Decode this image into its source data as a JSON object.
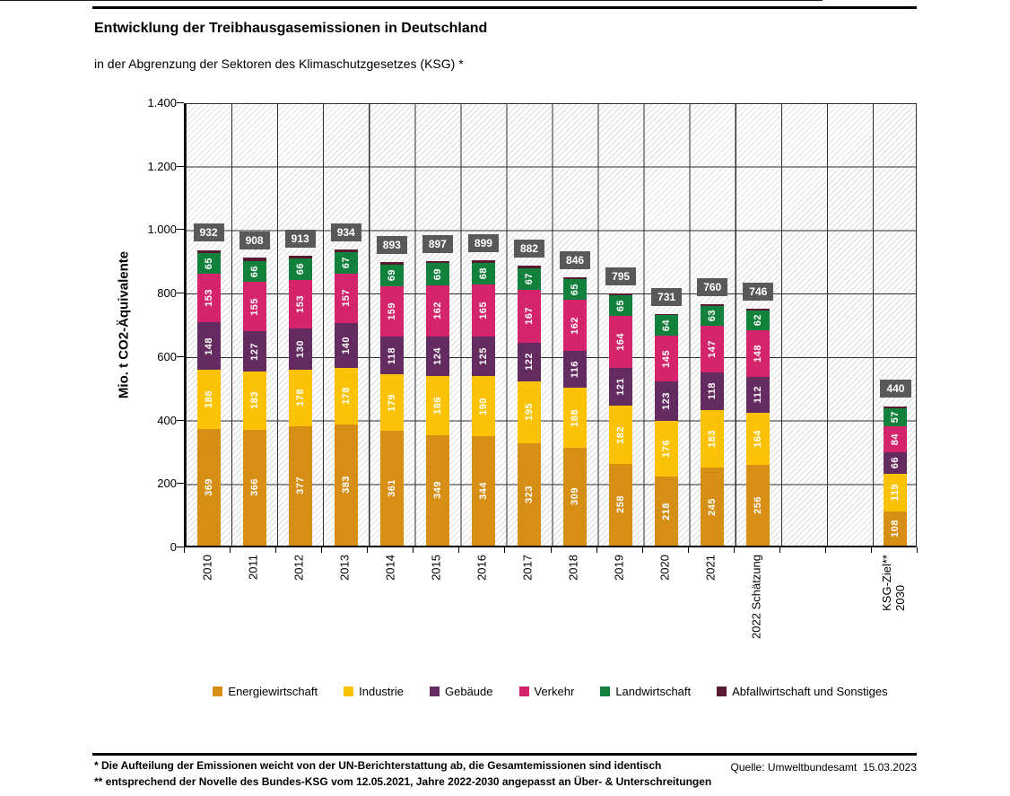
{
  "header": {
    "title": "Entwicklung der Treibhausgasemissionen in Deutschland",
    "subtitle": "in der Abgrenzung der Sektoren des Klimaschutzgesetzes (KSG) *"
  },
  "y_axis": {
    "title": "Mio. t CO2-Äquivalente",
    "ticks": [
      "0",
      "200",
      "400",
      "600",
      "800",
      "1.000",
      "1.200",
      "1.400"
    ]
  },
  "chart_data": {
    "type": "bar",
    "stacked": true,
    "title": "Entwicklung der Treibhausgasemissionen in Deutschland",
    "subtitle": "in der Abgrenzung der Sektoren des Klimaschutzgesetzes (KSG) *",
    "xlabel": "",
    "ylabel": "Mio. t CO2-Äquivalente",
    "ylim": [
      0,
      1400
    ],
    "grid": true,
    "background_hatch": "diagonal",
    "legend_position": "bottom",
    "n_columns": 16,
    "total_badge_color": "#595959",
    "categories": [
      {
        "label": "2010",
        "col": 0
      },
      {
        "label": "2011",
        "col": 1
      },
      {
        "label": "2012",
        "col": 2
      },
      {
        "label": "2013",
        "col": 3
      },
      {
        "label": "2014",
        "col": 4
      },
      {
        "label": "2015",
        "col": 5
      },
      {
        "label": "2016",
        "col": 6
      },
      {
        "label": "2017",
        "col": 7
      },
      {
        "label": "2018",
        "col": 8
      },
      {
        "label": "2019",
        "col": 9
      },
      {
        "label": "2020",
        "col": 10
      },
      {
        "label": "2021",
        "col": 11
      },
      {
        "label": "2022 Schätzung",
        "col": 12
      },
      {
        "label": "KSG-Ziel**\n2030",
        "col": 15
      }
    ],
    "series": [
      {
        "name": "Energiewirtschaft",
        "color": "#D78E15",
        "values": [
          369,
          366,
          377,
          383,
          361,
          349,
          344,
          323,
          309,
          258,
          218,
          245,
          256,
          108
        ]
      },
      {
        "name": "Industrie",
        "color": "#FCC306",
        "values": [
          186,
          183,
          178,
          178,
          179,
          186,
          190,
          195,
          188,
          182,
          176,
          183,
          164,
          119
        ]
      },
      {
        "name": "Gebäude",
        "color": "#642B60",
        "values": [
          148,
          127,
          130,
          140,
          118,
          124,
          125,
          122,
          116,
          121,
          123,
          118,
          112,
          66
        ]
      },
      {
        "name": "Verkehr",
        "color": "#D4256C",
        "values": [
          153,
          155,
          153,
          157,
          159,
          162,
          165,
          167,
          162,
          164,
          145,
          147,
          148,
          84
        ]
      },
      {
        "name": "Landwirtschaft",
        "color": "#12813B",
        "values": [
          65,
          66,
          66,
          67,
          69,
          69,
          68,
          67,
          65,
          65,
          64,
          63,
          62,
          57
        ]
      },
      {
        "name": "Abfallwirtschaft und Sonstiges",
        "color": "#581A33",
        "labels_hidden": true,
        "values": [
          11,
          11,
          9,
          9,
          7,
          7,
          7,
          8,
          6,
          5,
          5,
          4,
          4,
          6
        ]
      }
    ],
    "totals": [
      932,
      908,
      913,
      934,
      893,
      897,
      899,
      882,
      846,
      795,
      731,
      760,
      746,
      440
    ]
  },
  "footer": {
    "footnote1": "* Die Aufteilung der Emissionen weicht von der UN-Berichterstattung ab, die Gesamtemissionen sind identisch",
    "footnote2": "** entsprechend der Novelle des Bundes-KSG vom 12.05.2021, Jahre 2022-2030 angepasst an Über- & Unterschreitungen",
    "source": "Quelle: Umweltbundesamt  15.03.2023"
  }
}
